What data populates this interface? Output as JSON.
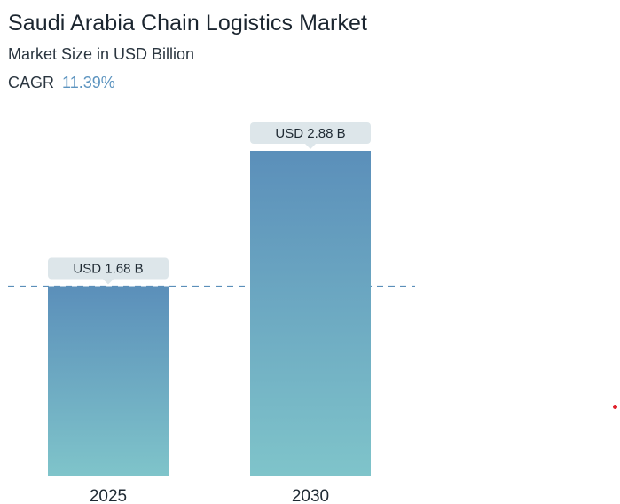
{
  "header": {
    "title": "Saudi Arabia Chain Logistics Market",
    "subtitle": "Market Size in USD Billion",
    "cagr_label": "CAGR",
    "cagr_value": "11.39%"
  },
  "colors": {
    "bar_top": "#5b8fba",
    "bar_bottom": "#7fc4ca",
    "label_bg": "#dde6ea",
    "dashed_line": "#5b8fba",
    "cagr_accent": "#5b93bf",
    "dot": "#e0202a"
  },
  "chart_data": {
    "type": "bar",
    "title": "Saudi Arabia Chain Logistics Market",
    "subtitle": "Market Size in USD Billion",
    "categories": [
      "2025",
      "2030"
    ],
    "values": [
      1.68,
      2.88
    ],
    "data_labels": [
      "USD 1.68 B",
      "USD 2.88 B"
    ],
    "unit": "USD Billion",
    "cagr": "11.39%",
    "reference_line": 1.68,
    "grid": false,
    "legend": "none"
  }
}
